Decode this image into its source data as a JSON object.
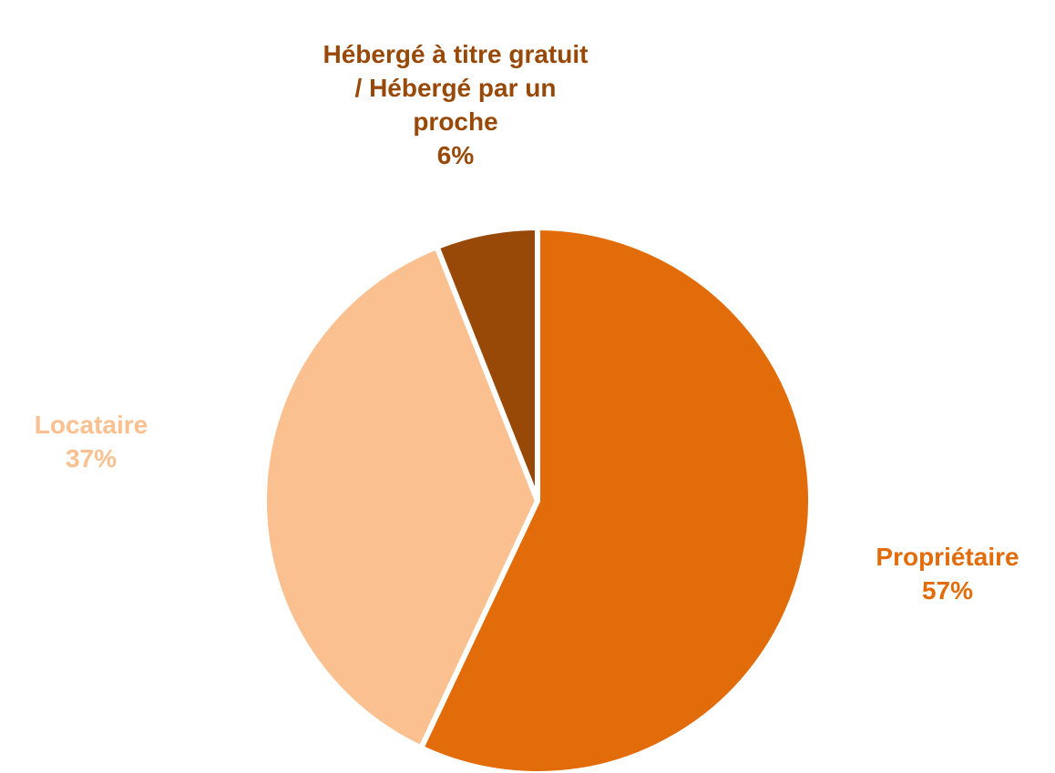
{
  "chart_data": {
    "type": "pie",
    "categories": [
      "Propriétaire",
      "Locataire",
      "Hébergé à titre gratuit / Hébergé par un proche"
    ],
    "values": [
      57,
      37,
      6
    ],
    "value_labels": [
      "57%",
      "37%",
      "6%"
    ],
    "colors": [
      "#e36c0a",
      "#fac090",
      "#984807"
    ]
  }
}
